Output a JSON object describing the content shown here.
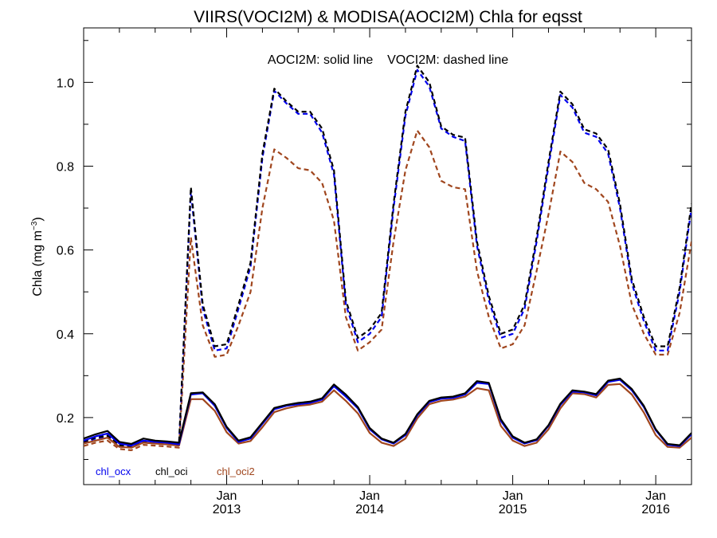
{
  "chart_data": {
    "type": "line",
    "title": "VIIRS(VOCI2M) & MODISA(AOCI2M)  Chla for eqsst",
    "annotation": "AOCI2M: solid line    VOCI2M: dashed line",
    "ylabel": "Chla (mg m",
    "ylabel_sup": "−3",
    "ylabel_close": ")",
    "ylim": [
      0.04,
      1.13
    ],
    "xlim": [
      2012.0,
      2016.25
    ],
    "grid": false,
    "y_ticks": [
      {
        "value": 0.2,
        "label": "0.2"
      },
      {
        "value": 0.4,
        "label": "0.4"
      },
      {
        "value": 0.6,
        "label": "0.6"
      },
      {
        "value": 0.8,
        "label": "0.8"
      },
      {
        "value": 1.0,
        "label": "1.0"
      }
    ],
    "x_ticks": [
      {
        "value": 2013.0,
        "month": "Jan",
        "year": "2013"
      },
      {
        "value": 2014.0,
        "month": "Jan",
        "year": "2014"
      },
      {
        "value": 2015.0,
        "month": "Jan",
        "year": "2015"
      },
      {
        "value": 2016.0,
        "month": "Jan",
        "year": "2016"
      }
    ],
    "legend": [
      {
        "label": "chl_ocx",
        "color": "#0000ee"
      },
      {
        "label": "chl_oci",
        "color": "#000000"
      },
      {
        "label": "chl_oci2",
        "color": "#a0461e"
      }
    ],
    "legend_position": "bottom-left",
    "series": [
      {
        "name": "chl_ocx",
        "style": "solid",
        "color": "#0000ee",
        "x": [
          2012.0,
          2012.083,
          2012.167,
          2012.25,
          2012.333,
          2012.417,
          2012.5,
          2012.583,
          2012.667,
          2012.75,
          2012.833,
          2012.917,
          2013.0,
          2013.083,
          2013.167,
          2013.25,
          2013.333,
          2013.417,
          2013.5,
          2013.583,
          2013.667,
          2013.75,
          2013.833,
          2013.917,
          2014.0,
          2014.083,
          2014.167,
          2014.25,
          2014.333,
          2014.417,
          2014.5,
          2014.583,
          2014.667,
          2014.75,
          2014.833,
          2014.917,
          2015.0,
          2015.083,
          2015.167,
          2015.25,
          2015.333,
          2015.417,
          2015.5,
          2015.583,
          2015.667,
          2015.75,
          2015.833,
          2015.917,
          2016.0,
          2016.083,
          2016.167,
          2016.25
        ],
        "y": [
          0.145,
          0.155,
          0.162,
          0.138,
          0.133,
          0.145,
          0.142,
          0.14,
          0.136,
          0.255,
          0.258,
          0.228,
          0.175,
          0.142,
          0.15,
          0.185,
          0.22,
          0.228,
          0.232,
          0.235,
          0.243,
          0.275,
          0.25,
          0.222,
          0.172,
          0.148,
          0.138,
          0.158,
          0.205,
          0.237,
          0.245,
          0.247,
          0.255,
          0.283,
          0.28,
          0.192,
          0.152,
          0.138,
          0.146,
          0.18,
          0.23,
          0.262,
          0.26,
          0.253,
          0.285,
          0.29,
          0.265,
          0.225,
          0.17,
          0.135,
          0.132,
          0.16
        ]
      },
      {
        "name": "chl_oci",
        "style": "solid",
        "color": "#000000",
        "x": [
          2012.0,
          2012.083,
          2012.167,
          2012.25,
          2012.333,
          2012.417,
          2012.5,
          2012.583,
          2012.667,
          2012.75,
          2012.833,
          2012.917,
          2013.0,
          2013.083,
          2013.167,
          2013.25,
          2013.333,
          2013.417,
          2013.5,
          2013.583,
          2013.667,
          2013.75,
          2013.833,
          2013.917,
          2014.0,
          2014.083,
          2014.167,
          2014.25,
          2014.333,
          2014.417,
          2014.5,
          2014.583,
          2014.667,
          2014.75,
          2014.833,
          2014.917,
          2015.0,
          2015.083,
          2015.167,
          2015.25,
          2015.333,
          2015.417,
          2015.5,
          2015.583,
          2015.667,
          2015.75,
          2015.833,
          2015.917,
          2016.0,
          2016.083,
          2016.167,
          2016.25
        ],
        "y": [
          0.15,
          0.16,
          0.168,
          0.142,
          0.137,
          0.15,
          0.145,
          0.143,
          0.14,
          0.258,
          0.26,
          0.232,
          0.178,
          0.145,
          0.153,
          0.188,
          0.223,
          0.23,
          0.235,
          0.238,
          0.246,
          0.279,
          0.255,
          0.225,
          0.175,
          0.15,
          0.14,
          0.161,
          0.208,
          0.24,
          0.248,
          0.25,
          0.258,
          0.287,
          0.283,
          0.196,
          0.155,
          0.14,
          0.148,
          0.182,
          0.233,
          0.265,
          0.262,
          0.256,
          0.288,
          0.293,
          0.268,
          0.228,
          0.172,
          0.137,
          0.134,
          0.163
        ]
      },
      {
        "name": "chl_oci2",
        "style": "solid",
        "color": "#a0461e",
        "x": [
          2012.0,
          2012.083,
          2012.167,
          2012.25,
          2012.333,
          2012.417,
          2012.5,
          2012.583,
          2012.667,
          2012.75,
          2012.833,
          2012.917,
          2013.0,
          2013.083,
          2013.167,
          2013.25,
          2013.333,
          2013.417,
          2013.5,
          2013.583,
          2013.667,
          2013.75,
          2013.833,
          2013.917,
          2014.0,
          2014.083,
          2014.167,
          2014.25,
          2014.333,
          2014.417,
          2014.5,
          2014.583,
          2014.667,
          2014.75,
          2014.833,
          2014.917,
          2015.0,
          2015.083,
          2015.167,
          2015.25,
          2015.333,
          2015.417,
          2015.5,
          2015.583,
          2015.667,
          2015.75,
          2015.833,
          2015.917,
          2016.0,
          2016.083,
          2016.167,
          2016.25
        ],
        "y": [
          0.138,
          0.145,
          0.152,
          0.13,
          0.128,
          0.14,
          0.138,
          0.136,
          0.133,
          0.244,
          0.244,
          0.216,
          0.165,
          0.138,
          0.144,
          0.177,
          0.213,
          0.222,
          0.228,
          0.231,
          0.238,
          0.265,
          0.24,
          0.21,
          0.163,
          0.14,
          0.132,
          0.15,
          0.198,
          0.232,
          0.24,
          0.243,
          0.25,
          0.27,
          0.265,
          0.18,
          0.145,
          0.132,
          0.14,
          0.172,
          0.222,
          0.258,
          0.256,
          0.248,
          0.278,
          0.28,
          0.255,
          0.212,
          0.158,
          0.13,
          0.128,
          0.152
        ]
      },
      {
        "name": "chl_ocx",
        "style": "dashed",
        "color": "#0000ee",
        "x": [
          2012.0,
          2012.083,
          2012.167,
          2012.25,
          2012.333,
          2012.417,
          2012.5,
          2012.583,
          2012.667,
          2012.75,
          2012.833,
          2012.917,
          2013.0,
          2013.083,
          2013.167,
          2013.25,
          2013.333,
          2013.417,
          2013.5,
          2013.583,
          2013.667,
          2013.75,
          2013.833,
          2013.917,
          2014.0,
          2014.083,
          2014.167,
          2014.25,
          2014.333,
          2014.417,
          2014.5,
          2014.583,
          2014.667,
          2014.75,
          2014.833,
          2014.917,
          2015.0,
          2015.083,
          2015.167,
          2015.25,
          2015.333,
          2015.417,
          2015.5,
          2015.583,
          2015.667,
          2015.75,
          2015.833,
          2015.917,
          2016.0,
          2016.083,
          2016.167,
          2016.25
        ],
        "y": [
          0.14,
          0.15,
          0.155,
          0.132,
          0.13,
          0.142,
          0.14,
          0.138,
          0.135,
          0.74,
          0.46,
          0.36,
          0.365,
          0.46,
          0.56,
          0.82,
          0.98,
          0.95,
          0.925,
          0.925,
          0.88,
          0.78,
          0.47,
          0.38,
          0.4,
          0.44,
          0.7,
          0.92,
          1.03,
          0.99,
          0.89,
          0.87,
          0.86,
          0.61,
          0.48,
          0.39,
          0.4,
          0.46,
          0.62,
          0.8,
          0.97,
          0.94,
          0.88,
          0.87,
          0.83,
          0.7,
          0.52,
          0.43,
          0.36,
          0.36,
          0.5,
          0.7
        ]
      },
      {
        "name": "chl_oci",
        "style": "dashed",
        "color": "#000000",
        "x": [
          2012.0,
          2012.083,
          2012.167,
          2012.25,
          2012.333,
          2012.417,
          2012.5,
          2012.583,
          2012.667,
          2012.75,
          2012.833,
          2012.917,
          2013.0,
          2013.083,
          2013.167,
          2013.25,
          2013.333,
          2013.417,
          2013.5,
          2013.583,
          2013.667,
          2013.75,
          2013.833,
          2013.917,
          2014.0,
          2014.083,
          2014.167,
          2014.25,
          2014.333,
          2014.417,
          2014.5,
          2014.583,
          2014.667,
          2014.75,
          2014.833,
          2014.917,
          2015.0,
          2015.083,
          2015.167,
          2015.25,
          2015.333,
          2015.417,
          2015.5,
          2015.583,
          2015.667,
          2015.75,
          2015.833,
          2015.917,
          2016.0,
          2016.083,
          2016.167,
          2016.25
        ],
        "y": [
          0.142,
          0.152,
          0.157,
          0.134,
          0.132,
          0.144,
          0.142,
          0.14,
          0.137,
          0.75,
          0.47,
          0.37,
          0.375,
          0.47,
          0.57,
          0.83,
          0.985,
          0.955,
          0.93,
          0.93,
          0.89,
          0.79,
          0.48,
          0.39,
          0.41,
          0.45,
          0.71,
          0.93,
          1.04,
          1.0,
          0.895,
          0.875,
          0.868,
          0.62,
          0.49,
          0.4,
          0.41,
          0.47,
          0.63,
          0.81,
          0.978,
          0.948,
          0.888,
          0.878,
          0.84,
          0.71,
          0.53,
          0.44,
          0.37,
          0.37,
          0.51,
          0.71
        ]
      },
      {
        "name": "chl_oci2",
        "style": "dashed",
        "color": "#a0461e",
        "x": [
          2012.0,
          2012.083,
          2012.167,
          2012.25,
          2012.333,
          2012.417,
          2012.5,
          2012.583,
          2012.667,
          2012.75,
          2012.833,
          2012.917,
          2013.0,
          2013.083,
          2013.167,
          2013.25,
          2013.333,
          2013.417,
          2013.5,
          2013.583,
          2013.667,
          2013.75,
          2013.833,
          2013.917,
          2014.0,
          2014.083,
          2014.167,
          2014.25,
          2014.333,
          2014.417,
          2014.5,
          2014.583,
          2014.667,
          2014.75,
          2014.833,
          2014.917,
          2015.0,
          2015.083,
          2015.167,
          2015.25,
          2015.333,
          2015.417,
          2015.5,
          2015.583,
          2015.667,
          2015.75,
          2015.833,
          2015.917,
          2016.0,
          2016.083,
          2016.167,
          2016.25
        ],
        "y": [
          0.132,
          0.14,
          0.145,
          0.125,
          0.122,
          0.135,
          0.133,
          0.131,
          0.128,
          0.63,
          0.42,
          0.345,
          0.35,
          0.42,
          0.5,
          0.7,
          0.84,
          0.82,
          0.795,
          0.79,
          0.76,
          0.67,
          0.44,
          0.36,
          0.38,
          0.41,
          0.62,
          0.79,
          0.885,
          0.845,
          0.765,
          0.75,
          0.745,
          0.55,
          0.44,
          0.365,
          0.375,
          0.42,
          0.55,
          0.685,
          0.835,
          0.81,
          0.76,
          0.745,
          0.715,
          0.61,
          0.47,
          0.4,
          0.35,
          0.35,
          0.45,
          0.62
        ]
      }
    ]
  }
}
